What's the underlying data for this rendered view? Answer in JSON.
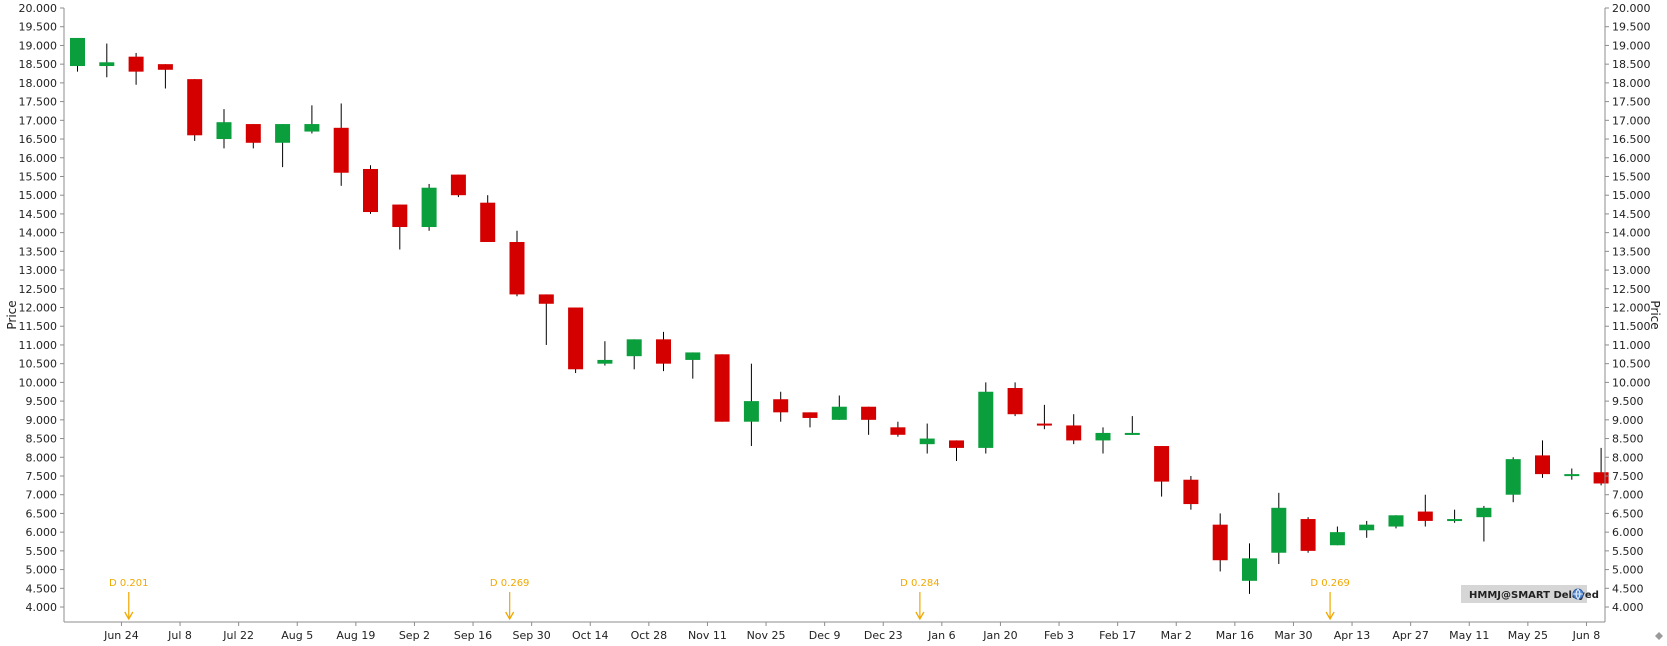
{
  "chart_data": {
    "type": "candlestick",
    "symbol_badge": "HMMJ@SMART Delayed",
    "ylabel": "Price",
    "ylim": [
      3.6,
      20.0
    ],
    "y_ticks": [
      "4.000",
      "4.500",
      "5.000",
      "5.500",
      "6.000",
      "6.500",
      "7.000",
      "7.500",
      "8.000",
      "8.500",
      "9.000",
      "9.500",
      "10.000",
      "10.500",
      "11.000",
      "11.500",
      "12.000",
      "12.500",
      "13.000",
      "13.500",
      "14.000",
      "14.500",
      "15.000",
      "15.500",
      "16.000",
      "16.500",
      "17.000",
      "17.500",
      "18.000",
      "18.500",
      "19.000",
      "19.500",
      "20.000"
    ],
    "x_labels": [
      {
        "label": "Jun 24",
        "index": 1.5
      },
      {
        "label": "Jul 8",
        "index": 3.5
      },
      {
        "label": "Jul 22",
        "index": 5.5
      },
      {
        "label": "Aug 5",
        "index": 7.5
      },
      {
        "label": "Aug 19",
        "index": 9.5
      },
      {
        "label": "Sep 2",
        "index": 11.5
      },
      {
        "label": "Sep 16",
        "index": 13.5
      },
      {
        "label": "Sep 30",
        "index": 15.5
      },
      {
        "label": "Oct 14",
        "index": 17.5
      },
      {
        "label": "Oct 28",
        "index": 19.5
      },
      {
        "label": "Nov 11",
        "index": 21.5
      },
      {
        "label": "Nov 25",
        "index": 23.5
      },
      {
        "label": "Dec 9",
        "index": 25.5
      },
      {
        "label": "Dec 23",
        "index": 27.5
      },
      {
        "label": "Jan 6",
        "index": 29.5
      },
      {
        "label": "Jan 20",
        "index": 31.5
      },
      {
        "label": "Feb 3",
        "index": 33.5
      },
      {
        "label": "Feb 17",
        "index": 35.5
      },
      {
        "label": "Mar 2",
        "index": 37.5
      },
      {
        "label": "Mar 16",
        "index": 39.5
      },
      {
        "label": "Mar 30",
        "index": 41.5
      },
      {
        "label": "Apr 13",
        "index": 43.5
      },
      {
        "label": "Apr 27",
        "index": 45.5
      },
      {
        "label": "May 11",
        "index": 47.5
      },
      {
        "label": "May 25",
        "index": 49.5
      },
      {
        "label": "Jun 8",
        "index": 51.5
      }
    ],
    "candles": [
      {
        "o": 18.45,
        "h": 19.2,
        "l": 18.3,
        "c": 19.2
      },
      {
        "o": 18.45,
        "h": 19.05,
        "l": 18.15,
        "c": 18.55
      },
      {
        "o": 18.7,
        "h": 18.8,
        "l": 17.95,
        "c": 18.3
      },
      {
        "o": 18.5,
        "h": 18.5,
        "l": 17.85,
        "c": 18.35
      },
      {
        "o": 18.1,
        "h": 18.1,
        "l": 16.45,
        "c": 16.6
      },
      {
        "o": 16.5,
        "h": 17.3,
        "l": 16.25,
        "c": 16.95
      },
      {
        "o": 16.9,
        "h": 16.9,
        "l": 16.25,
        "c": 16.4
      },
      {
        "o": 16.4,
        "h": 16.9,
        "l": 15.75,
        "c": 16.9
      },
      {
        "o": 16.7,
        "h": 17.4,
        "l": 16.65,
        "c": 16.9
      },
      {
        "o": 16.8,
        "h": 17.45,
        "l": 15.25,
        "c": 15.6
      },
      {
        "o": 15.7,
        "h": 15.8,
        "l": 14.5,
        "c": 14.55
      },
      {
        "o": 14.75,
        "h": 14.75,
        "l": 13.55,
        "c": 14.15
      },
      {
        "o": 14.15,
        "h": 15.3,
        "l": 14.05,
        "c": 15.2
      },
      {
        "o": 15.55,
        "h": 15.55,
        "l": 14.95,
        "c": 15.0
      },
      {
        "o": 14.8,
        "h": 15.0,
        "l": 13.75,
        "c": 13.75
      },
      {
        "o": 13.75,
        "h": 14.05,
        "l": 12.3,
        "c": 12.35
      },
      {
        "o": 12.35,
        "h": 12.35,
        "l": 11.0,
        "c": 12.1
      },
      {
        "o": 12.0,
        "h": 12.0,
        "l": 10.25,
        "c": 10.35
      },
      {
        "o": 10.5,
        "h": 11.1,
        "l": 10.45,
        "c": 10.6
      },
      {
        "o": 10.7,
        "h": 11.15,
        "l": 10.35,
        "c": 11.15
      },
      {
        "o": 11.15,
        "h": 11.35,
        "l": 10.3,
        "c": 10.5
      },
      {
        "o": 10.6,
        "h": 10.8,
        "l": 10.1,
        "c": 10.8
      },
      {
        "o": 10.75,
        "h": 10.75,
        "l": 8.95,
        "c": 8.95
      },
      {
        "o": 8.95,
        "h": 10.5,
        "l": 8.3,
        "c": 9.5
      },
      {
        "o": 9.55,
        "h": 9.75,
        "l": 8.95,
        "c": 9.2
      },
      {
        "o": 9.2,
        "h": 9.2,
        "l": 8.8,
        "c": 9.05
      },
      {
        "o": 9.0,
        "h": 9.65,
        "l": 9.0,
        "c": 9.35
      },
      {
        "o": 9.35,
        "h": 9.35,
        "l": 8.6,
        "c": 9.0
      },
      {
        "o": 8.8,
        "h": 8.95,
        "l": 8.55,
        "c": 8.6
      },
      {
        "o": 8.35,
        "h": 8.9,
        "l": 8.1,
        "c": 8.5
      },
      {
        "o": 8.45,
        "h": 8.45,
        "l": 7.9,
        "c": 8.25
      },
      {
        "o": 8.25,
        "h": 10.0,
        "l": 8.1,
        "c": 9.75
      },
      {
        "o": 9.85,
        "h": 10.0,
        "l": 9.1,
        "c": 9.15
      },
      {
        "o": 8.9,
        "h": 9.4,
        "l": 8.75,
        "c": 8.85
      },
      {
        "o": 8.85,
        "h": 9.15,
        "l": 8.35,
        "c": 8.45
      },
      {
        "o": 8.45,
        "h": 8.8,
        "l": 8.1,
        "c": 8.65
      },
      {
        "o": 8.65,
        "h": 9.1,
        "l": 8.6,
        "c": 8.65
      },
      {
        "o": 8.3,
        "h": 8.3,
        "l": 6.95,
        "c": 7.35
      },
      {
        "o": 7.4,
        "h": 7.5,
        "l": 6.6,
        "c": 6.75
      },
      {
        "o": 6.2,
        "h": 6.5,
        "l": 4.95,
        "c": 5.25
      },
      {
        "o": 4.7,
        "h": 5.7,
        "l": 4.35,
        "c": 5.3
      },
      {
        "o": 5.45,
        "h": 7.05,
        "l": 5.15,
        "c": 6.65
      },
      {
        "o": 6.35,
        "h": 6.4,
        "l": 5.45,
        "c": 5.5
      },
      {
        "o": 5.65,
        "h": 6.15,
        "l": 5.65,
        "c": 6.0
      },
      {
        "o": 6.05,
        "h": 6.3,
        "l": 5.85,
        "c": 6.2
      },
      {
        "o": 6.15,
        "h": 6.45,
        "l": 6.1,
        "c": 6.45
      },
      {
        "o": 6.55,
        "h": 7.0,
        "l": 6.15,
        "c": 6.3
      },
      {
        "o": 6.3,
        "h": 6.6,
        "l": 6.25,
        "c": 6.35
      },
      {
        "o": 6.4,
        "h": 6.7,
        "l": 5.75,
        "c": 6.65
      },
      {
        "o": 7.0,
        "h": 8.0,
        "l": 6.8,
        "c": 7.95
      },
      {
        "o": 8.05,
        "h": 8.45,
        "l": 7.45,
        "c": 7.55
      },
      {
        "o": 7.55,
        "h": 7.7,
        "l": 7.4,
        "c": 7.55
      },
      {
        "o": 7.6,
        "h": 8.25,
        "l": 7.25,
        "c": 7.3
      }
    ],
    "dividends": [
      {
        "label": "D 0.201",
        "index": 1.75
      },
      {
        "label": "D 0.269",
        "index": 14.75
      },
      {
        "label": "D 0.284",
        "index": 28.75
      },
      {
        "label": "D 0.269",
        "index": 42.75
      }
    ],
    "colors": {
      "up": "#0a9e3c",
      "down": "#d40000",
      "wick": "#000000",
      "axis": "#8c8c8c",
      "dividend": "#f0a800",
      "badge_bg": "#d6d6d6"
    }
  }
}
